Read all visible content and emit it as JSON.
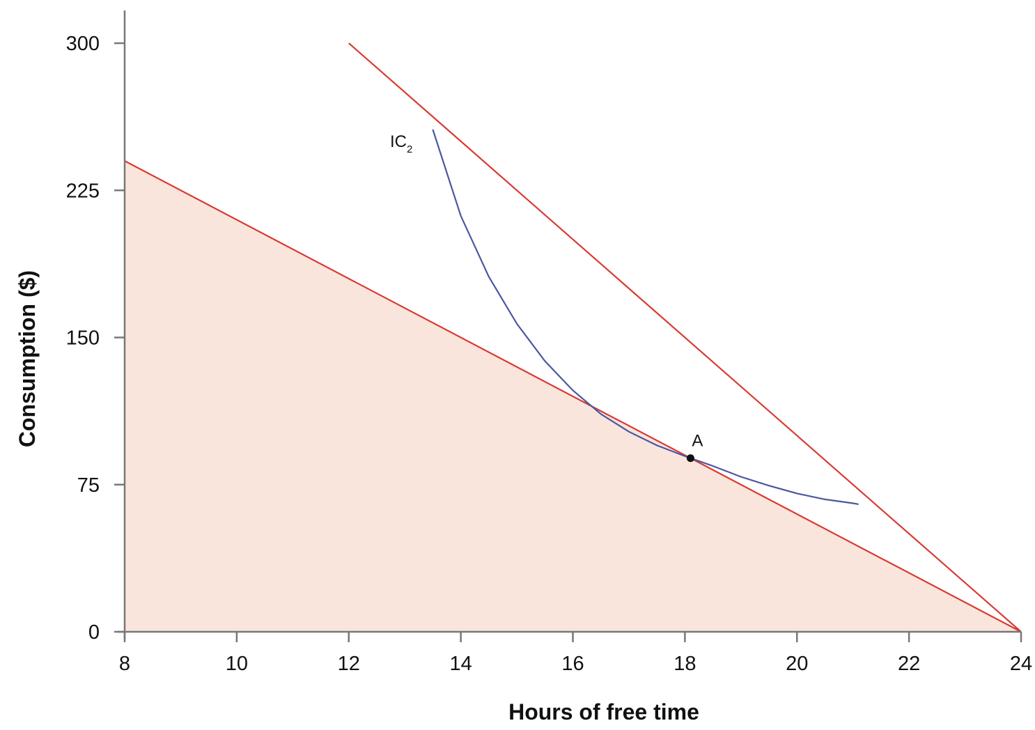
{
  "chart_data": {
    "type": "line",
    "xlabel": "Hours of free time",
    "ylabel": "Consumption ($)",
    "xlim": [
      8,
      24
    ],
    "ylim": [
      0,
      300
    ],
    "x_ticks": [
      8,
      10,
      12,
      14,
      16,
      18,
      20,
      22,
      24
    ],
    "y_ticks": [
      0,
      75,
      150,
      225,
      300
    ],
    "grid": false,
    "series": [
      {
        "color": "#d93a33",
        "fill": "#f9e5dc",
        "points": [
          [
            8,
            240
          ],
          [
            24,
            0
          ]
        ]
      },
      {
        "color": "#d93a33",
        "points": [
          [
            12,
            300
          ],
          [
            24,
            0
          ]
        ]
      },
      {
        "name": "IC",
        "name_sub": "2",
        "color": "#4a57a0",
        "points": [
          [
            13.5,
            256
          ],
          [
            14.0,
            212
          ],
          [
            14.5,
            181
          ],
          [
            15.0,
            157
          ],
          [
            15.5,
            138
          ],
          [
            16.0,
            123
          ],
          [
            16.5,
            111
          ],
          [
            17.0,
            102
          ],
          [
            17.5,
            95
          ],
          [
            18.0,
            89.5
          ],
          [
            18.5,
            84.5
          ],
          [
            19.0,
            79
          ],
          [
            19.5,
            74.5
          ],
          [
            20.0,
            70.5
          ],
          [
            20.5,
            67.5
          ],
          [
            21.0,
            65.5
          ],
          [
            21.1,
            65
          ]
        ]
      }
    ],
    "annotations": [
      {
        "label": "A",
        "x": 18.1,
        "y": 88.5,
        "marker": "dot",
        "color": "#111111"
      }
    ],
    "axis_color": "#777777"
  }
}
